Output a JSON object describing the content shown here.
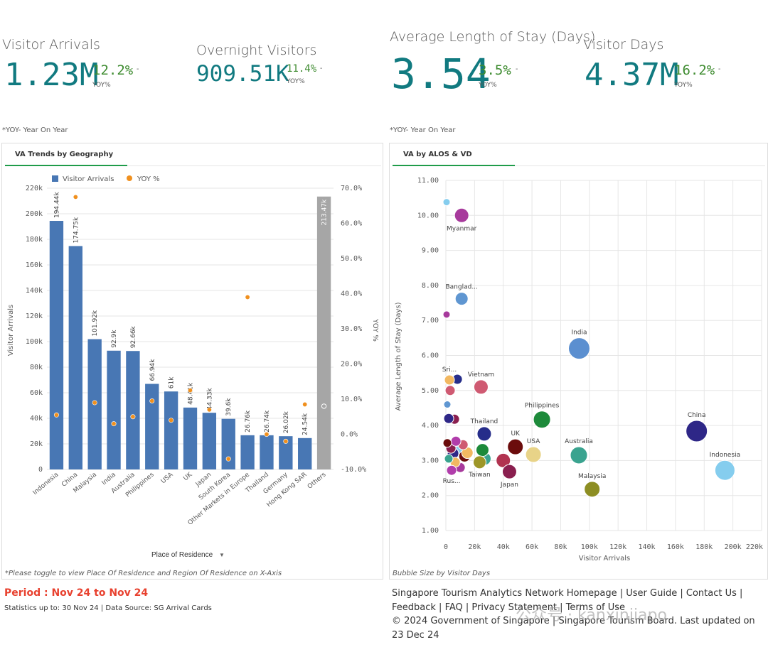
{
  "kpis": [
    {
      "label": "Visitor Arrivals",
      "value": "1.23M",
      "yoy": "12.2%",
      "yoy_label": "YOY%",
      "dash": "-"
    },
    {
      "label": "Overnight Visitors",
      "value": "909.51K",
      "yoy": "11.4%",
      "yoy_label": "YOY%",
      "dash": "-"
    },
    {
      "label": "Average Length of Stay (Days)",
      "value": "3.54",
      "yoy": "3.5%",
      "yoy_label": "YOY%",
      "dash": "-"
    },
    {
      "label": "Visitor Days",
      "value": "4.37M",
      "yoy": "16.2%",
      "yoy_label": "YOY%",
      "dash": "-"
    }
  ],
  "yoy_note_left": "*YOY- Year On Year",
  "yoy_note_right": "*YOY- Year On Year",
  "left_panel": {
    "title": "VA Trends by Geography",
    "footnote": "*Please toggle to view Place Of Residence and Region Of Residence on X-Axis",
    "dimension_label": "Place of Residence",
    "dimension_caret": "▼"
  },
  "right_panel": {
    "title": "VA by ALOS & VD",
    "footnote": "Bubble Size by Visitor Days"
  },
  "period": "Period : Nov 24 to Nov 24",
  "stats": "Statistics up to: 30 Nov 24 | Data Source: SG Arrival Cards",
  "footer_links": [
    "Singapore Tourism Analytics Network Homepage",
    "User Guide",
    "Contact Us",
    "Feedback",
    "FAQ",
    "Privacy Statement",
    "Terms of Use"
  ],
  "copyright": "© 2024 Government of Singapore | Singapore Tourism Board. Last updated on 23 Dec 24",
  "watermark": "公众号 · kanxinjiapo",
  "colors": {
    "bar": "#4877b4",
    "others_bar": "#a6a6a6",
    "yoy_dot": "#f0901e",
    "kpi_value": "#117a80",
    "kpi_pct": "#3f8c31",
    "period": "#e8412f",
    "accent": "#1f9c4a"
  },
  "chart_data": [
    {
      "type": "bar",
      "title": "VA Trends by Geography",
      "xlabel": "Place of Residence",
      "ylabel": "Visitor Arrivals",
      "y2label": "YOY %",
      "legend": [
        "Visitor Arrivals",
        "YOY %"
      ],
      "legend_position": "top-left",
      "ylim": [
        0,
        220000
      ],
      "y2lim": [
        -10,
        70
      ],
      "y_ticks": [
        "0",
        "20k",
        "40k",
        "60k",
        "80k",
        "100k",
        "120k",
        "140k",
        "160k",
        "180k",
        "200k",
        "220k"
      ],
      "y2_ticks": [
        "-10.0%",
        "0.0%",
        "10.0%",
        "20.0%",
        "30.0%",
        "40.0%",
        "50.0%",
        "60.0%",
        "70.0%"
      ],
      "categories": [
        "Indonesia",
        "China",
        "Malaysia",
        "India",
        "Australia",
        "Philippines",
        "USA",
        "UK",
        "Japan",
        "South Korea",
        "Other Markets in Europe",
        "Thailand",
        "Germany",
        "Hong Kong SAR",
        "Others"
      ],
      "series": [
        {
          "name": "Visitor Arrivals",
          "values": [
            194440,
            174750,
            101920,
            92900,
            92660,
            66940,
            61000,
            48410,
            44330,
            39600,
            26760,
            26740,
            26020,
            24540,
            213470
          ],
          "labels": [
            "194.44k",
            "174.75k",
            "101.92k",
            "92.9k",
            "92.66k",
            "66.94k",
            "61k",
            "48.41k",
            "44.33k",
            "39.6k",
            "26.76k",
            "26.74k",
            "26.02k",
            "24.54k",
            "213.47k"
          ]
        },
        {
          "name": "YOY %",
          "values": [
            5.5,
            67.5,
            9.0,
            3.0,
            5.0,
            9.5,
            4.0,
            12.5,
            7.0,
            -7.0,
            39.0,
            0.0,
            -2.0,
            8.5,
            8.0
          ]
        }
      ],
      "grid": true
    },
    {
      "type": "scatter",
      "title": "VA by ALOS & VD",
      "xlabel": "Visitor Arrivals",
      "ylabel": "Average Length of Stay (Days)",
      "xlim": [
        0,
        220000
      ],
      "ylim": [
        1,
        11
      ],
      "x_ticks": [
        "0",
        "20k",
        "40k",
        "60k",
        "80k",
        "100k",
        "120k",
        "140k",
        "160k",
        "180k",
        "200k",
        "220k"
      ],
      "y_ticks": [
        "1.00",
        "2.00",
        "3.00",
        "4.00",
        "5.00",
        "6.00",
        "7.00",
        "8.00",
        "9.00",
        "10.00",
        "11.00"
      ],
      "grid": true,
      "points": [
        {
          "label": "Indonesia",
          "x": 194440,
          "y": 2.72,
          "size": 14,
          "color": "#85cdee"
        },
        {
          "label": "China",
          "x": 174750,
          "y": 3.84,
          "size": 15,
          "color": "#2e2787"
        },
        {
          "label": "India",
          "x": 92900,
          "y": 6.2,
          "size": 15,
          "color": "#5b8fd0"
        },
        {
          "label": "Australia",
          "x": 92660,
          "y": 3.15,
          "size": 12,
          "color": "#3aa38f"
        },
        {
          "label": "Malaysia",
          "x": 101920,
          "y": 2.18,
          "size": 11,
          "color": "#8d8e23"
        },
        {
          "label": "Philippines",
          "x": 66940,
          "y": 4.17,
          "size": 12,
          "color": "#1d8a3a"
        },
        {
          "label": "USA",
          "x": 61000,
          "y": 3.17,
          "size": 11,
          "color": "#e8d388"
        },
        {
          "label": "UK",
          "x": 48410,
          "y": 3.39,
          "size": 11,
          "color": "#6b0c0c"
        },
        {
          "label": "Japan",
          "x": 44330,
          "y": 2.68,
          "size": 10,
          "color": "#8a1f4f"
        },
        {
          "label": "Thailand",
          "x": 26740,
          "y": 3.76,
          "size": 10,
          "color": "#262d8a"
        },
        {
          "label": "Taiwan",
          "x": 23500,
          "y": 2.95,
          "size": 9,
          "color": "#9d9628"
        },
        {
          "label": "Vietnam",
          "x": 24500,
          "y": 5.1,
          "size": 10,
          "color": "#cf5a72"
        },
        {
          "label": "Banglad...",
          "x": 11000,
          "y": 7.62,
          "size": 9,
          "color": "#5f96d1"
        },
        {
          "label": "Myanmar",
          "x": 11000,
          "y": 10.0,
          "size": 10,
          "color": "#a73a9c"
        },
        {
          "label": "Sri...",
          "x": 2500,
          "y": 5.3,
          "size": 7,
          "color": "#f2b861"
        },
        {
          "label": "Rus...",
          "x": 4000,
          "y": 2.72,
          "size": 7,
          "color": "#b13dab"
        },
        {
          "label": "",
          "x": 500,
          "y": 10.38,
          "size": 5,
          "color": "#85cdee"
        },
        {
          "label": "",
          "x": 500,
          "y": 7.17,
          "size": 5,
          "color": "#a73a9c"
        },
        {
          "label": "",
          "x": 1000,
          "y": 4.6,
          "size": 5,
          "color": "#5f96d1"
        },
        {
          "label": "",
          "x": 2000,
          "y": 4.2,
          "size": 7,
          "color": "#2e2787"
        },
        {
          "label": "",
          "x": 6000,
          "y": 4.18,
          "size": 7,
          "color": "#8a1f4f"
        },
        {
          "label": "",
          "x": 8000,
          "y": 5.32,
          "size": 7,
          "color": "#262d8a"
        },
        {
          "label": "",
          "x": 3000,
          "y": 5.0,
          "size": 7,
          "color": "#cf5a72"
        },
        {
          "label": "",
          "x": 7000,
          "y": 3.55,
          "size": 7,
          "color": "#b13dab"
        },
        {
          "label": "",
          "x": 12000,
          "y": 3.45,
          "size": 7,
          "color": "#cf5a72"
        },
        {
          "label": "",
          "x": 15000,
          "y": 3.22,
          "size": 8,
          "color": "#f2b861"
        },
        {
          "label": "",
          "x": 13000,
          "y": 3.12,
          "size": 8,
          "color": "#6b0c0c"
        },
        {
          "label": "",
          "x": 25500,
          "y": 3.3,
          "size": 9,
          "color": "#1d8a3a"
        },
        {
          "label": "",
          "x": 27000,
          "y": 3.05,
          "size": 9,
          "color": "#3aa38f"
        },
        {
          "label": "",
          "x": 40000,
          "y": 3.0,
          "size": 10,
          "color": "#b13350"
        },
        {
          "label": "",
          "x": 5000,
          "y": 3.2,
          "size": 8,
          "color": "#2e2787"
        },
        {
          "label": "",
          "x": 9000,
          "y": 3.25,
          "size": 8,
          "color": "#85cdee"
        },
        {
          "label": "",
          "x": 3500,
          "y": 3.35,
          "size": 7,
          "color": "#8a1f4f"
        },
        {
          "label": "",
          "x": 6500,
          "y": 2.95,
          "size": 7,
          "color": "#f2b861"
        },
        {
          "label": "",
          "x": 10000,
          "y": 2.8,
          "size": 7,
          "color": "#a73a9c"
        },
        {
          "label": "",
          "x": 2000,
          "y": 3.05,
          "size": 6,
          "color": "#3aa38f"
        },
        {
          "label": "",
          "x": 1000,
          "y": 3.5,
          "size": 6,
          "color": "#6b0c0c"
        }
      ]
    }
  ]
}
